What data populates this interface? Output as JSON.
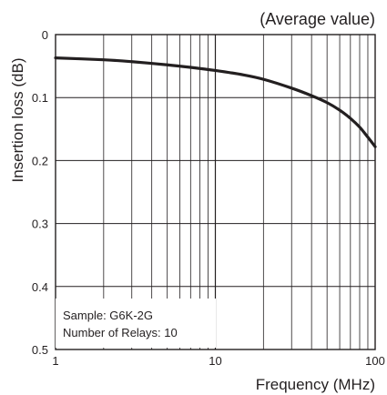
{
  "chart_data": {
    "type": "line",
    "title": "",
    "annotation": "(Average value)",
    "xlabel": "Frequency (MHz)",
    "ylabel": "Insertion loss (dB)",
    "x_scale": "log",
    "xlim": [
      1,
      100
    ],
    "ylim": [
      0,
      0.5
    ],
    "y_inverted": true,
    "grid": true,
    "x_ticks": [
      {
        "value": 1,
        "label": "1"
      },
      {
        "value": 10,
        "label": "10"
      },
      {
        "value": 100,
        "label": "100"
      }
    ],
    "y_ticks": [
      {
        "value": 0,
        "label": "0"
      },
      {
        "value": 0.1,
        "label": "0.1"
      },
      {
        "value": 0.2,
        "label": "0.2"
      },
      {
        "value": 0.3,
        "label": "0.3"
      },
      {
        "value": 0.4,
        "label": "0.4"
      },
      {
        "value": 0.5,
        "label": "0.5"
      }
    ],
    "legend_box": {
      "placement": "bottom-left",
      "lines": [
        "Sample: G6K-2G",
        "Number of Relays: 10"
      ]
    },
    "series": [
      {
        "color": "#231f20",
        "x": [
          1,
          2,
          3,
          5,
          7,
          10,
          15,
          20,
          30,
          40,
          50,
          60,
          70,
          80,
          90,
          100
        ],
        "y": [
          0.037,
          0.04,
          0.043,
          0.048,
          0.052,
          0.057,
          0.064,
          0.071,
          0.085,
          0.097,
          0.108,
          0.12,
          0.133,
          0.147,
          0.163,
          0.178
        ]
      }
    ]
  }
}
